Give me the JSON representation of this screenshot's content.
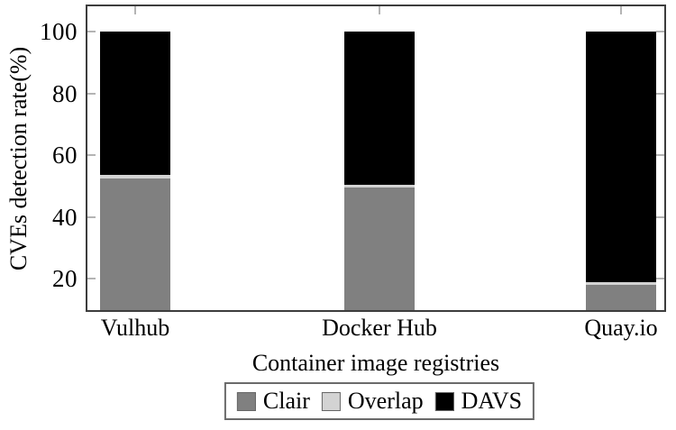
{
  "figure": {
    "y_axis_label": "CVEs detection rate(%)",
    "x_axis_label": "Container image registries"
  },
  "chart_data": {
    "type": "bar",
    "stacked": true,
    "title": "",
    "xlabel": "Container image registries",
    "ylabel": "CVEs detection rate(%)",
    "categories": [
      "Vulhub",
      "Docker Hub",
      "Quay.io"
    ],
    "series": [
      {
        "name": "Clair",
        "color": "#808080",
        "values": [
          52.5,
          49.5,
          18.0
        ]
      },
      {
        "name": "Overlap",
        "color": "#d3d3d3",
        "values": [
          1.0,
          1.0,
          1.0
        ]
      },
      {
        "name": "DAVS",
        "color": "#000000",
        "values": [
          46.5,
          49.5,
          81.0
        ]
      }
    ],
    "unit": "%",
    "ylim": [
      9.8,
      108.2
    ],
    "yticks": [
      20,
      40,
      60,
      80,
      100
    ],
    "grid": false,
    "legend_position": "bottom",
    "frame": true
  }
}
